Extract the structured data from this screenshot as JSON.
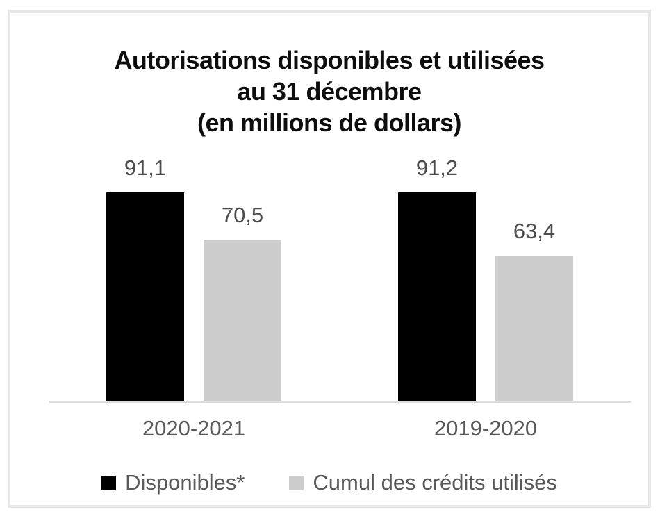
{
  "title": {
    "lines": [
      "Autorisations disponibles et utilisées",
      "au 31 décembre",
      "(en millions de dollars)"
    ]
  },
  "chart_data": {
    "type": "bar",
    "title": "Autorisations disponibles et utilisées au 31 décembre (en millions de dollars)",
    "unit": "millions de dollars",
    "categories": [
      "2020-2021",
      "2019-2020"
    ],
    "series": [
      {
        "name": "Disponibles*",
        "color": "#000000",
        "values": [
          91.1,
          91.2
        ],
        "labels": [
          "91,1",
          "91,2"
        ]
      },
      {
        "name": "Cumul des crédits utilisés",
        "color": "#cccccc",
        "values": [
          70.5,
          63.4
        ],
        "labels": [
          "70,5",
          "63,4"
        ]
      }
    ],
    "ylim": [
      0,
      100
    ],
    "grid": false,
    "y_axis_visible": false,
    "data_labels": true,
    "legend_position": "bottom",
    "axis_line_color": "#dcdcdc",
    "label_text_color": "#595959",
    "frame_border_color": "#e7e7e7"
  }
}
